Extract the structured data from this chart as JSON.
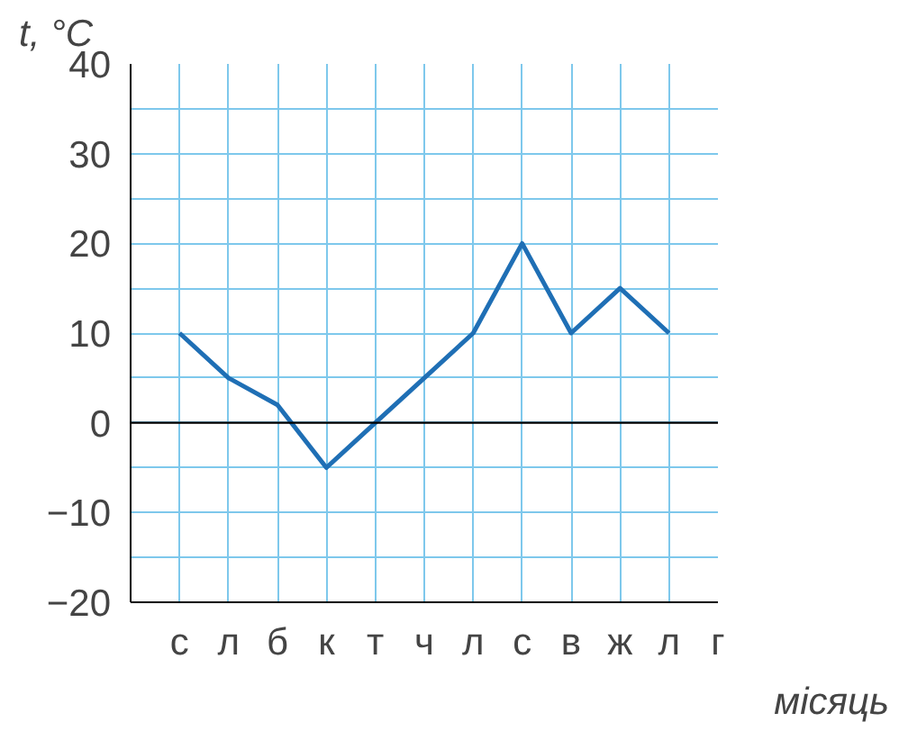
{
  "chart_data": {
    "type": "line",
    "xlabel": "місяць",
    "ylabel": "t, °C",
    "categories": [
      "с",
      "л",
      "б",
      "к",
      "т",
      "ч",
      "л",
      "с",
      "в",
      "ж",
      "л",
      "г"
    ],
    "series": [
      {
        "color": "#1f6fb5",
        "values": [
          10,
          5,
          2,
          -5,
          0,
          5,
          10,
          20,
          10,
          15,
          10,
          null
        ]
      }
    ],
    "ylim": [
      -20,
      40
    ],
    "yticks": [
      {
        "value": -20,
        "label": "−20"
      },
      {
        "value": -15,
        "label": null
      },
      {
        "value": -10,
        "label": "−10"
      },
      {
        "value": -5,
        "label": null
      },
      0,
      {
        "value": 5,
        "label": null
      },
      10,
      {
        "value": 15,
        "label": null
      },
      20,
      {
        "value": 25,
        "label": null
      },
      30,
      {
        "value": 35,
        "label": null
      },
      40
    ],
    "ref_lines": [
      {
        "axis": "y",
        "value": 0,
        "color": "#000000"
      }
    ],
    "grid": true,
    "marker": "none",
    "line_style": "solid"
  }
}
